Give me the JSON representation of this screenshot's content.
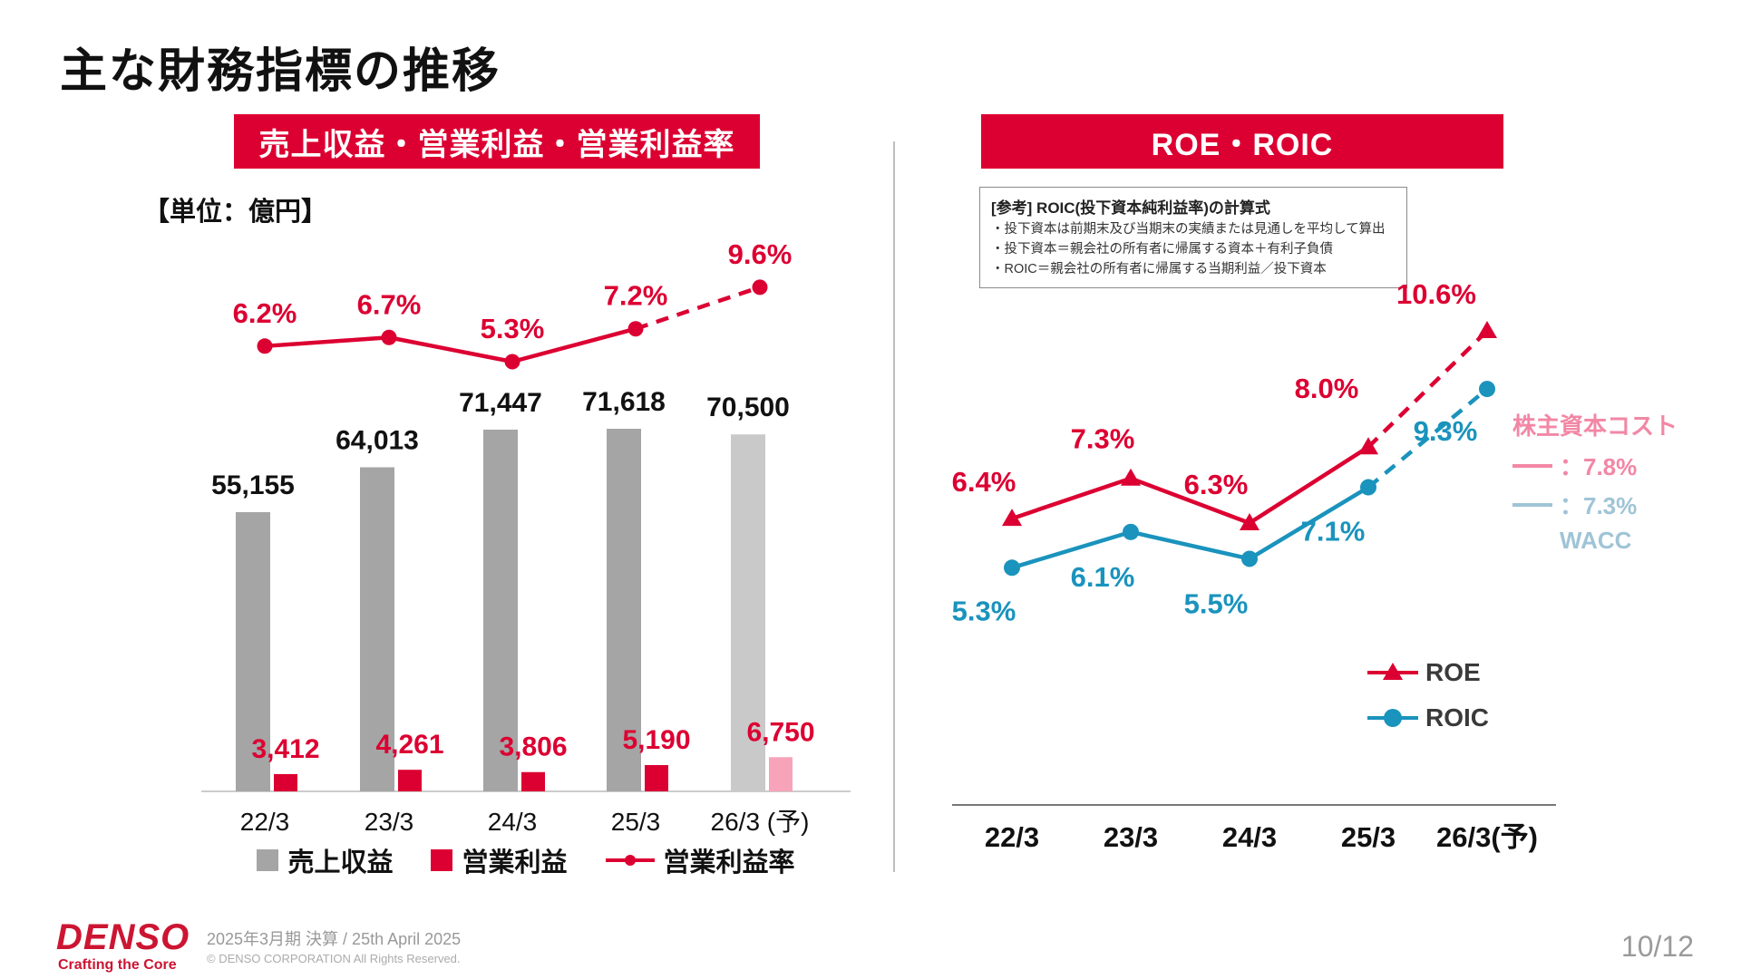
{
  "page": {
    "title": "主な財務指標の推移",
    "page_number": "10/12"
  },
  "footer": {
    "logo": "DENSO",
    "logo_tagline": "Crafting the Core",
    "event": "2025年3月期 決算 / 25th April 2025",
    "copyright": "© DENSO CORPORATION All Rights Reserved."
  },
  "left_panel": {
    "banner": "売上収益・営業利益・営業利益率",
    "unit_label": "【単位：億円】",
    "legend": [
      {
        "label": "売上収益",
        "swatch": "gray-square"
      },
      {
        "label": "営業利益",
        "swatch": "red-square"
      },
      {
        "label": "営業利益率",
        "swatch": "red-line-dot"
      }
    ]
  },
  "right_panel": {
    "banner": "ROE・ROIC",
    "formula_box": {
      "title": "[参考] ROIC(投下資本純利益率)の計算式",
      "lines": [
        "・投下資本は前期末及び当期末の実績または見通しを平均して算出",
        "・投下資本＝親会社の所有者に帰属する資本＋有利子負債",
        "・ROIC＝親会社の所有者に帰属する当期利益／投下資本"
      ]
    },
    "cost_annotation": {
      "title": "株主資本コスト",
      "equity_value": "：7.8%",
      "wacc_value": "：7.3%",
      "wacc_label": "WACC"
    },
    "legend": [
      {
        "label": "ROE",
        "swatch": "red-line-triangle"
      },
      {
        "label": "ROIC",
        "swatch": "blue-line-circle"
      }
    ]
  },
  "colors": {
    "brand_red": "#dc0032",
    "bar_gray": "#a5a5a5",
    "bar_gray_forecast": "#c9c9c9",
    "bar_red": "#dc0032",
    "bar_pink_forecast": "#f7a3ba",
    "roic_blue": "#1a93bd",
    "cost_pink": "#f287a5",
    "wacc_blue": "#9fc4d6",
    "axis_gray": "#cccccc"
  },
  "chart_data": [
    {
      "type": "bar",
      "subtype": "bar+line combo",
      "title": "売上収益・営業利益・営業利益率",
      "unit": "億円",
      "categories": [
        "22/3",
        "23/3",
        "24/3",
        "25/3",
        "26/3 (予)"
      ],
      "series": [
        {
          "name": "売上収益",
          "type": "bar",
          "values": [
            55155,
            64013,
            71447,
            71618,
            70500
          ],
          "labels": [
            "55,155",
            "64,013",
            "71,447",
            "71,618",
            "70,500"
          ],
          "forecast_index": 4
        },
        {
          "name": "営業利益",
          "type": "bar",
          "values": [
            3412,
            4261,
            3806,
            5190,
            6750
          ],
          "labels": [
            "3,412",
            "4,261",
            "3,806",
            "5,190",
            "6,750"
          ],
          "forecast_index": 4
        },
        {
          "name": "営業利益率",
          "type": "line",
          "values": [
            6.2,
            6.7,
            5.3,
            7.2,
            9.6
          ],
          "labels": [
            "6.2%",
            "6.7%",
            "5.3%",
            "7.2%",
            "9.6%"
          ],
          "dashed_last_segment": true
        }
      ],
      "ylim": [
        0,
        80000
      ],
      "grid": false,
      "legend_position": "bottom"
    },
    {
      "type": "line",
      "title": "ROE・ROIC",
      "categories": [
        "22/3",
        "23/3",
        "24/3",
        "25/3",
        "26/3(予)"
      ],
      "series": [
        {
          "name": "ROE",
          "marker": "triangle",
          "values": [
            6.4,
            7.3,
            6.3,
            8.0,
            10.6
          ],
          "labels": [
            "6.4%",
            "7.3%",
            "6.3%",
            "8.0%",
            "10.6%"
          ],
          "dashed_last_segment": true
        },
        {
          "name": "ROIC",
          "marker": "circle",
          "values": [
            5.3,
            6.1,
            5.5,
            7.1,
            9.3
          ],
          "labels": [
            "5.3%",
            "6.1%",
            "5.5%",
            "7.1%",
            "9.3%"
          ],
          "dashed_last_segment": true
        }
      ],
      "reference_levels": [
        {
          "name": "株主資本コスト",
          "value": 7.8
        },
        {
          "name": "WACC",
          "value": 7.3
        }
      ],
      "grid": false,
      "legend_position": "right-bottom"
    }
  ]
}
